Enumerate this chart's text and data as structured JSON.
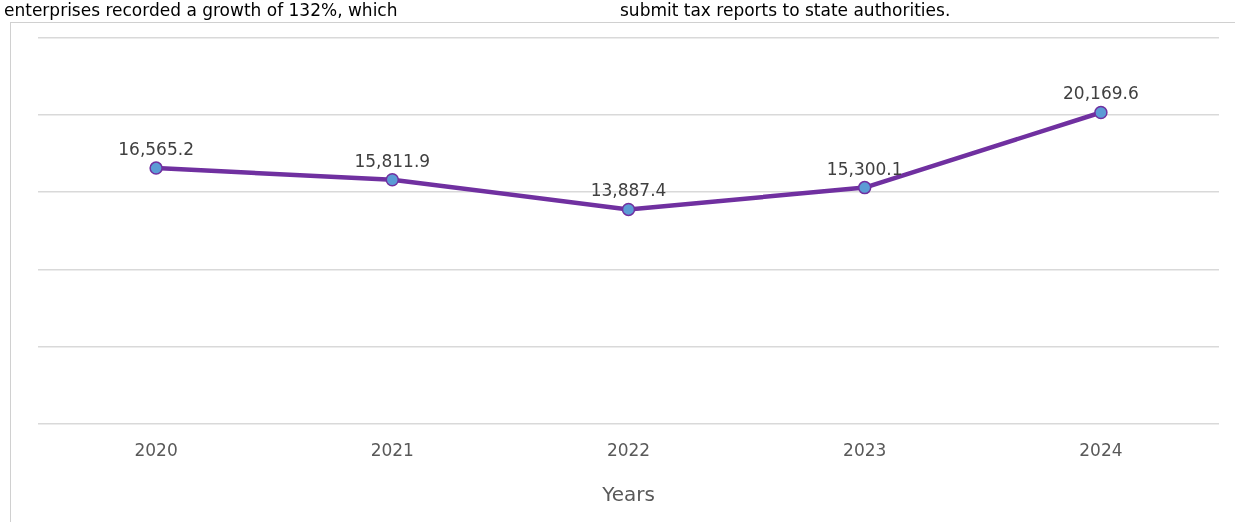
{
  "chart_data": {
    "type": "line",
    "xlabel": "Years",
    "categories": [
      "2020",
      "2021",
      "2022",
      "2023",
      "2024"
    ],
    "series": [
      {
        "color": "#7030a0",
        "values": [
          16565.2,
          15811.9,
          13887.4,
          15300.1,
          20169.6
        ],
        "value_labels": [
          "16,565.2",
          "15,811.9",
          "13,887.4",
          "15,300.1",
          "20,169.6"
        ]
      }
    ],
    "ylim": [
      0,
      25000
    ],
    "yticks": [
      {
        "value": 0,
        "label": null
      },
      {
        "value": 5000,
        "label": null
      },
      {
        "value": 10000,
        "label": null
      },
      {
        "value": 15000,
        "label": null
      },
      {
        "value": 20000,
        "label": null
      },
      {
        "value": 25000,
        "label": null
      }
    ],
    "tick_labels": "x",
    "grid": "y",
    "marker": "circle",
    "line_style": "solid",
    "annotations": [
      "enterprises recorded a growth of 132%, which",
      "submit tax reports to state authorities."
    ]
  }
}
